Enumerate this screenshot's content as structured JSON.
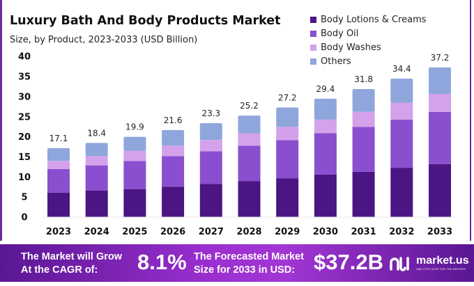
{
  "chart_data": {
    "type": "bar",
    "stacked": true,
    "title": "Luxury Bath And Body Products Market",
    "subtitle": "Size, by Product, 2023-2033 (USD Billion)",
    "categories": [
      "2023",
      "2024",
      "2025",
      "2026",
      "2027",
      "2028",
      "2029",
      "2030",
      "2031",
      "2032",
      "2033"
    ],
    "series": [
      {
        "name": "Body Lotions & Creams",
        "color": "#4b1584",
        "values": [
          6.0,
          6.5,
          6.9,
          7.5,
          8.2,
          8.9,
          9.6,
          10.5,
          11.2,
          12.2,
          13.1
        ]
      },
      {
        "name": "Body Oil",
        "color": "#8a4fce",
        "values": [
          5.9,
          6.3,
          7.0,
          7.6,
          8.1,
          8.8,
          9.5,
          10.3,
          11.2,
          12.0,
          13.0
        ]
      },
      {
        "name": "Body Washes",
        "color": "#d3a2ea",
        "values": [
          2.0,
          2.3,
          2.5,
          2.6,
          2.8,
          3.1,
          3.3,
          3.4,
          3.7,
          4.2,
          4.5
        ]
      },
      {
        "name": "Others",
        "color": "#8fa6dc",
        "values": [
          3.2,
          3.3,
          3.5,
          3.9,
          4.2,
          4.4,
          4.8,
          5.2,
          5.7,
          6.0,
          6.6
        ]
      }
    ],
    "totals": [
      "17.1",
      "18.4",
      "19.9",
      "21.6",
      "23.3",
      "25.2",
      "27.2",
      "29.4",
      "31.8",
      "34.4",
      "37.2"
    ],
    "yticks": [
      "0",
      "5",
      "10",
      "15",
      "20",
      "25",
      "30",
      "35",
      "40"
    ],
    "ylim": [
      0,
      40
    ],
    "grid": false,
    "legend": "top-right"
  },
  "footer": {
    "cagr_text_1": "The Market will Grow",
    "cagr_text_2": "At the CAGR of:",
    "cagr_value": "8.1%",
    "forecast_text_1": "The Forecasted Market",
    "forecast_text_2": "Size for 2033 in USD:",
    "forecast_value": "$37.2B",
    "logo": "market.us",
    "logo_tagline": "ONE STOP SHOP FOR THE REPORTS"
  }
}
